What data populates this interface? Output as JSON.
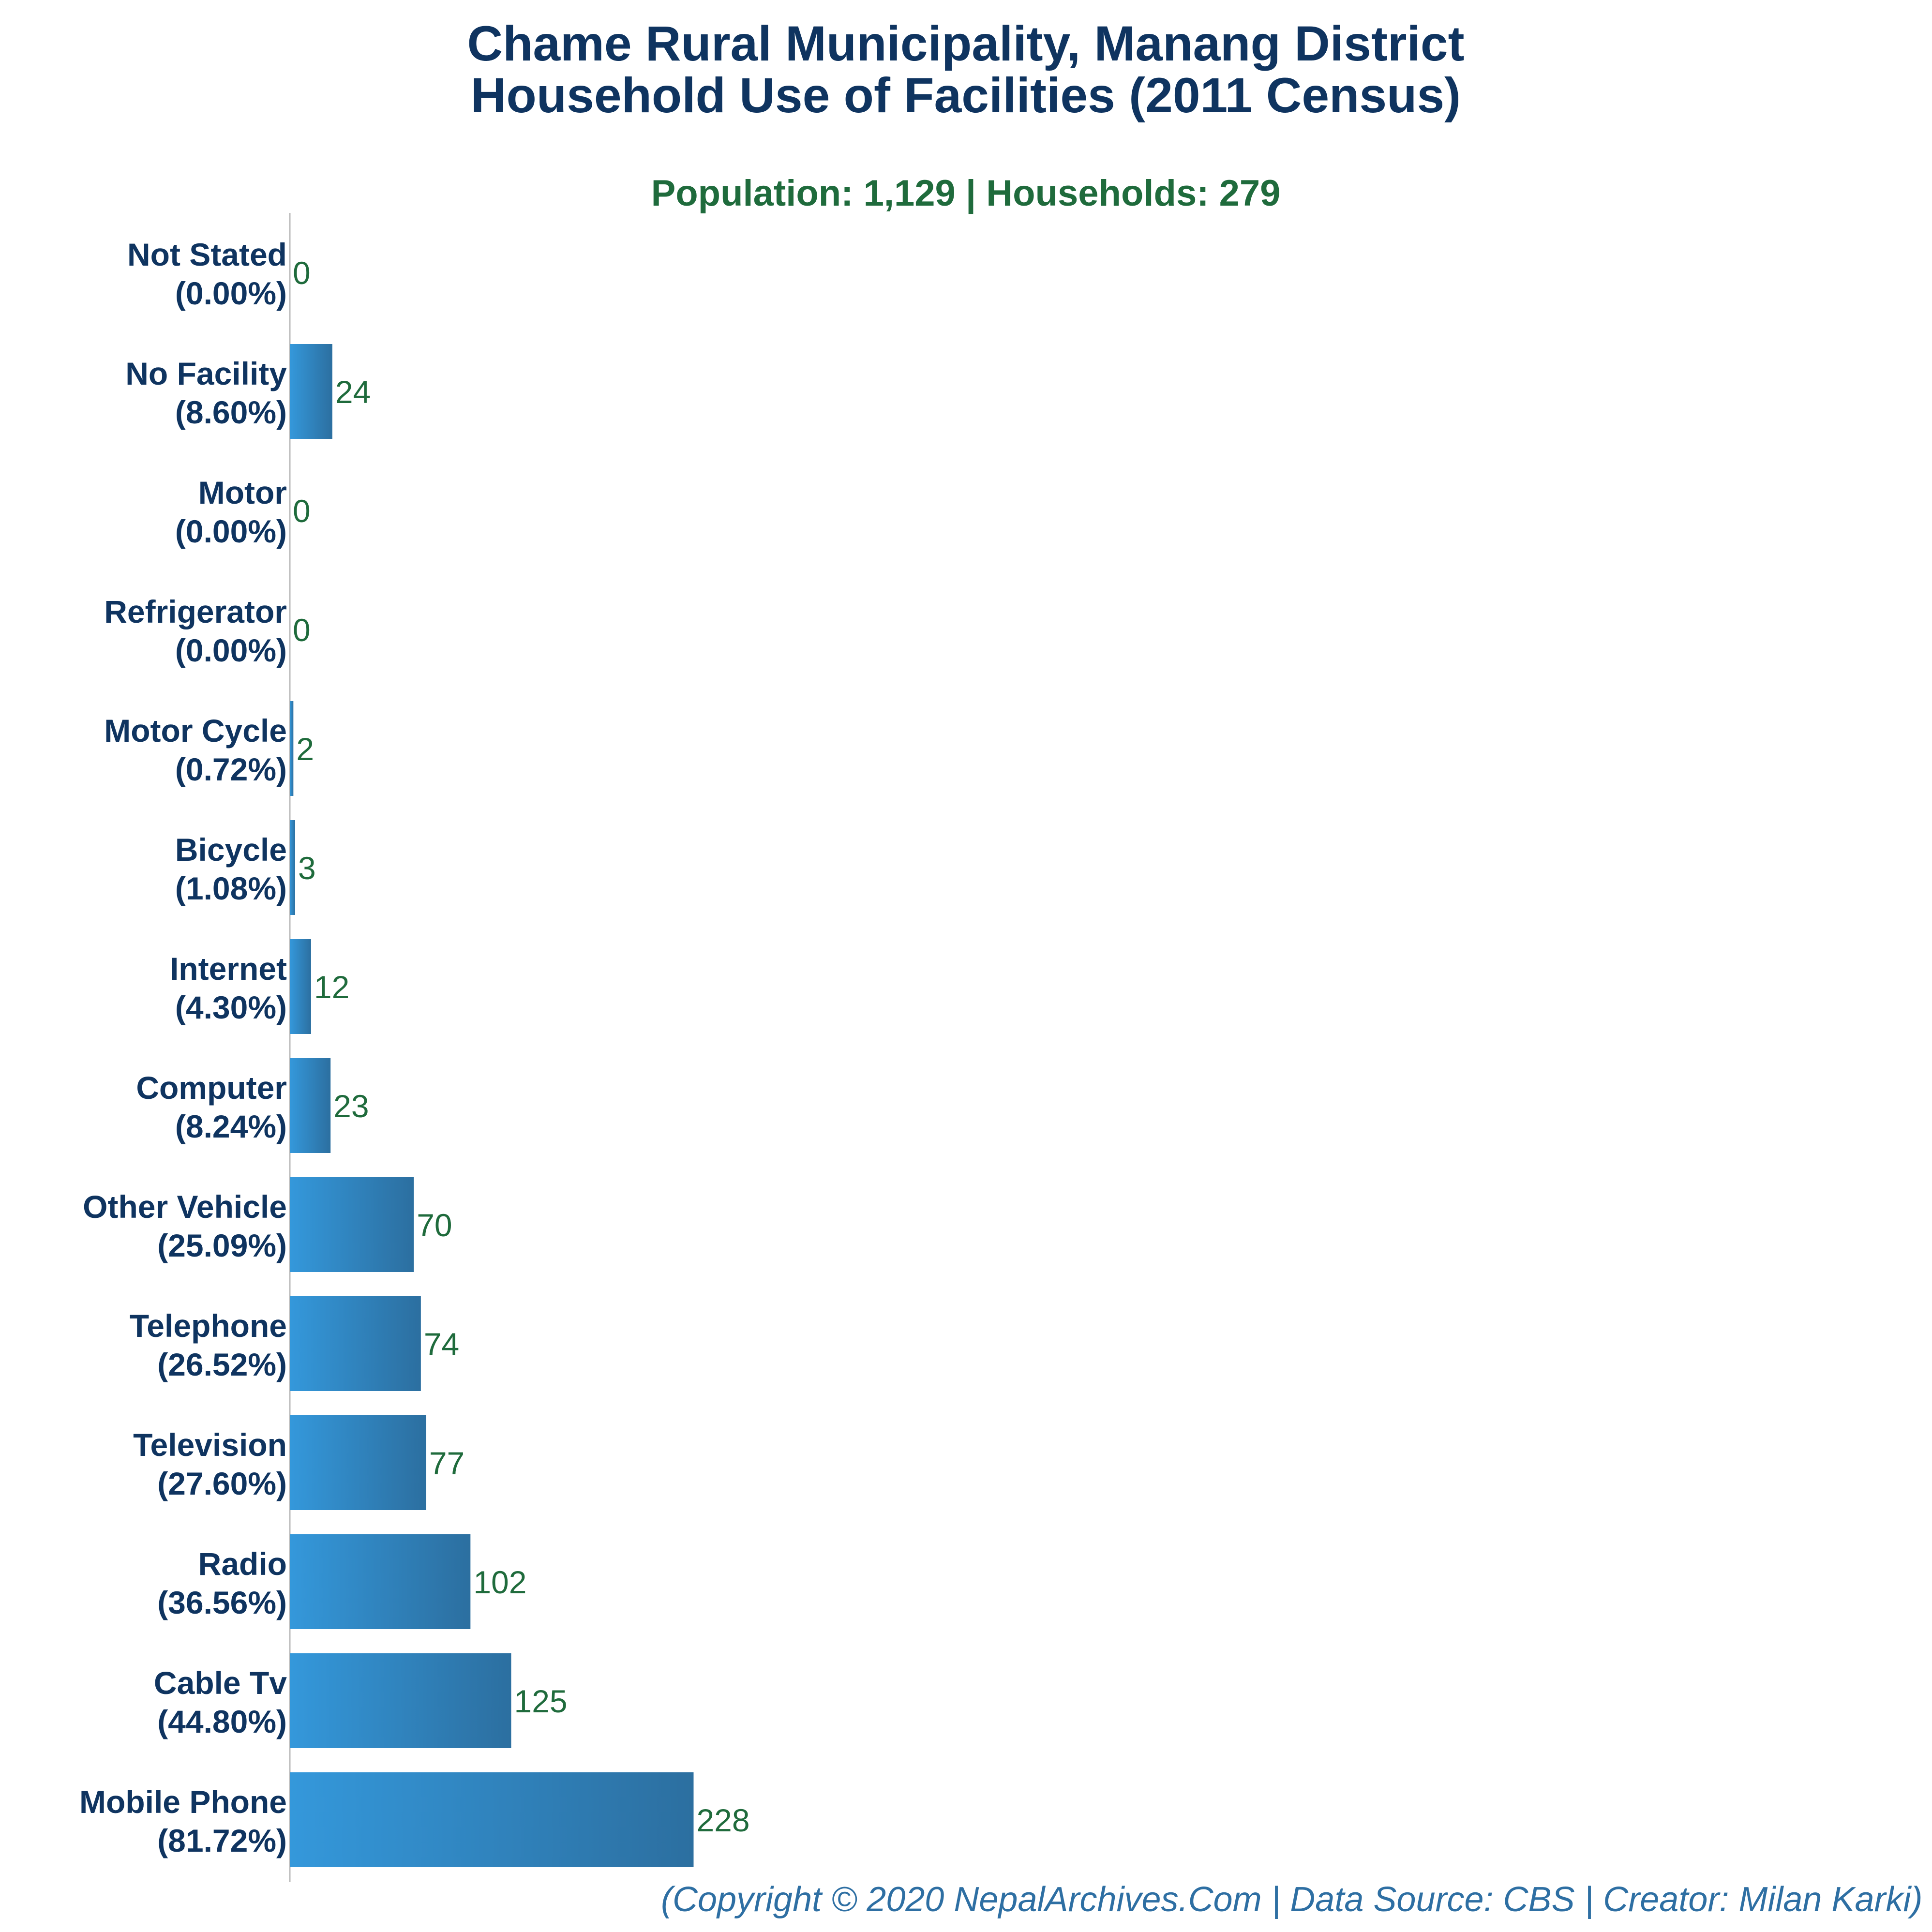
{
  "chart_data": {
    "type": "bar",
    "orientation": "horizontal",
    "title": [
      "Chame Rural Municipality, Manang District",
      "Household Use of Facilities (2011 Census)"
    ],
    "subtitle": "Population: 1,129 | Households: 279",
    "categories": [
      "Not Stated",
      "No Facility",
      "Motor",
      "Refrigerator",
      "Motor Cycle",
      "Bicycle",
      "Internet",
      "Computer",
      "Other Vehicle",
      "Telephone",
      "Television",
      "Radio",
      "Cable Tv",
      "Mobile Phone"
    ],
    "percent_labels": [
      "(0.00%)",
      "(8.60%)",
      "(0.00%)",
      "(0.00%)",
      "(0.72%)",
      "(1.08%)",
      "(4.30%)",
      "(8.24%)",
      "(25.09%)",
      "(26.52%)",
      "(27.60%)",
      "(36.56%)",
      "(44.80%)",
      "(81.72%)"
    ],
    "values": [
      0,
      24,
      0,
      0,
      2,
      3,
      12,
      23,
      70,
      74,
      77,
      102,
      125,
      228
    ],
    "xlim": [
      0,
      1000
    ],
    "bar_color": "#3498db",
    "grid": false,
    "legend": "none"
  },
  "footer": "(Copyright © 2020 NepalArchives.Com | Data Source: CBS | Creator: Milan Karki)"
}
